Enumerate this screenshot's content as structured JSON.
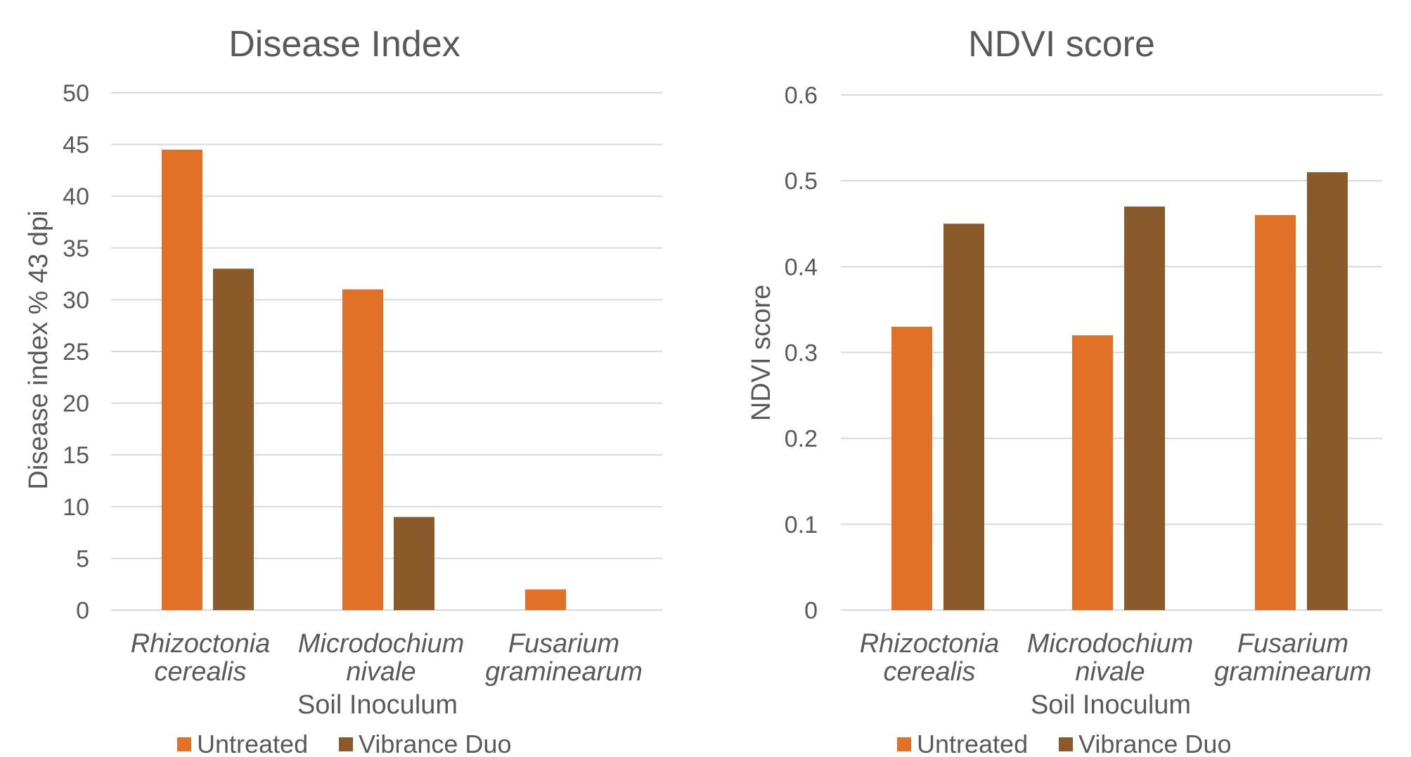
{
  "colors": {
    "untreated": "#E07126",
    "vibrance": "#8B5A2B",
    "grid": "#D9D9D9",
    "text": "#595959"
  },
  "chart_data": [
    {
      "type": "bar",
      "title": "Disease Index",
      "ylabel": "Disease index % 43 dpi",
      "xlabel": "Soil Inoculum",
      "categories": [
        [
          "Rhizoctonia",
          "cerealis"
        ],
        [
          "Microdochium",
          "nivale"
        ],
        [
          "Fusarium",
          "graminearum"
        ]
      ],
      "series": [
        {
          "name": "Untreated",
          "values": [
            44.5,
            31,
            2
          ]
        },
        {
          "name": "Vibrance Duo",
          "values": [
            33,
            9,
            0
          ]
        }
      ],
      "ylim": [
        0,
        50
      ],
      "yticks": [
        "0",
        "5",
        "10",
        "15",
        "20",
        "25",
        "30",
        "35",
        "40",
        "45",
        "50"
      ],
      "grid": true,
      "legend": "bottom"
    },
    {
      "type": "bar",
      "title": "NDVI score",
      "ylabel": "NDVI score",
      "xlabel": "Soil Inoculum",
      "categories": [
        [
          "Rhizoctonia",
          "cerealis"
        ],
        [
          "Microdochium",
          "nivale"
        ],
        [
          "Fusarium",
          "graminearum"
        ]
      ],
      "series": [
        {
          "name": "Untreated",
          "values": [
            0.33,
            0.32,
            0.46
          ]
        },
        {
          "name": "Vibrance Duo",
          "values": [
            0.45,
            0.47,
            0.51
          ]
        }
      ],
      "ylim": [
        0,
        0.6
      ],
      "yticks": [
        "0",
        "0.1",
        "0.2",
        "0.3",
        "0.4",
        "0.5",
        "0.6"
      ],
      "grid": true,
      "legend": "bottom"
    }
  ]
}
